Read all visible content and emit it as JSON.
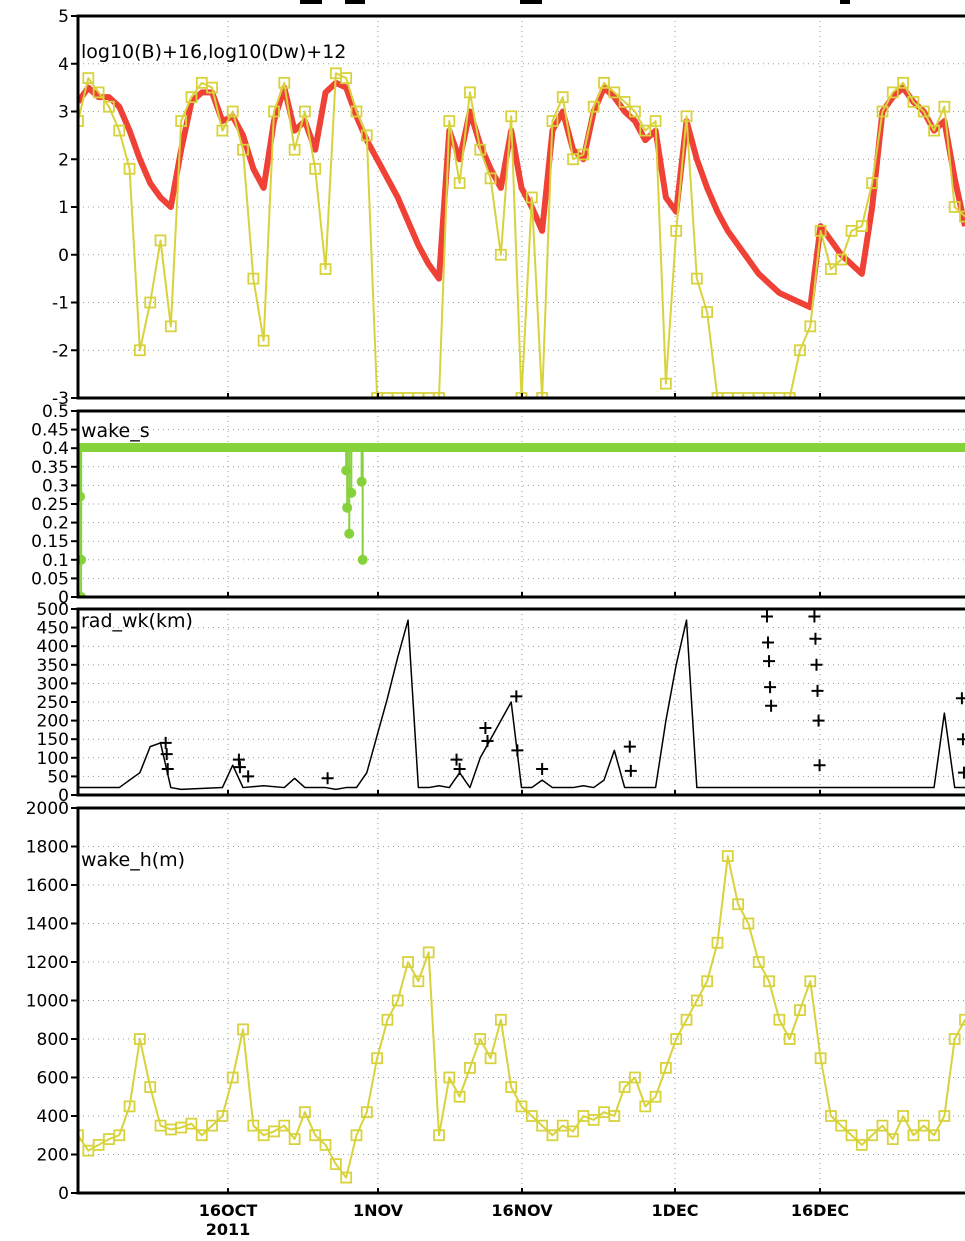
{
  "figure": {
    "panels_text": [
      "log10(B)+16,log10(Dw)+12",
      "wake_s",
      "rad_wk(km)",
      "wake_h(m)"
    ],
    "xticks": [
      "16OCT",
      "1NOV",
      "16NOV",
      "1DEC",
      "16DEC"
    ],
    "year_label": "2011",
    "colors": {
      "yellow": "#d8d33c",
      "red": "#ef4136",
      "green": "#86d23a",
      "black": "#000000"
    }
  },
  "chart_data": [
    {
      "type": "line",
      "label": "log10(B)+16,log10(Dw)+12",
      "x_range": [
        0,
        86
      ],
      "ylim": [
        -3,
        5
      ],
      "yticks": [
        -3,
        -2,
        -1,
        0,
        1,
        2,
        3,
        4,
        5
      ],
      "grid": true,
      "series": [
        {
          "color": "red",
          "x": [
            0,
            1,
            2,
            3,
            4,
            5,
            6,
            7,
            8,
            9,
            10,
            11,
            12,
            13,
            14,
            15,
            16,
            17,
            18,
            19,
            20,
            21,
            22,
            23,
            24,
            25,
            26,
            27,
            28,
            29,
            30,
            31,
            32,
            33,
            34,
            35,
            36,
            37,
            38,
            39,
            40,
            41,
            42,
            43,
            44,
            45,
            46,
            47,
            48,
            49,
            50,
            51,
            52,
            53,
            54,
            55,
            56,
            57,
            58,
            59,
            60,
            61,
            62,
            63,
            64,
            65,
            66,
            67,
            68,
            69,
            70,
            71,
            72,
            73,
            74,
            75,
            76,
            77,
            78,
            79,
            80,
            81,
            82,
            83,
            84,
            85,
            86
          ],
          "values": [
            3.2,
            3.5,
            3.3,
            3.3,
            3.1,
            2.6,
            2.0,
            1.5,
            1.2,
            1.0,
            2.2,
            3.2,
            3.4,
            3.4,
            2.8,
            2.9,
            2.5,
            1.8,
            1.4,
            2.8,
            3.5,
            2.6,
            2.8,
            2.2,
            3.4,
            3.6,
            3.5,
            2.9,
            2.4,
            2.0,
            1.6,
            1.2,
            0.7,
            0.2,
            -0.2,
            -0.5,
            2.6,
            2.0,
            3.0,
            2.3,
            1.8,
            1.4,
            2.6,
            1.4,
            1.0,
            0.5,
            2.6,
            3.0,
            2.2,
            2.0,
            3.0,
            3.5,
            3.3,
            3.0,
            2.8,
            2.4,
            2.6,
            1.2,
            0.9,
            2.8,
            2.0,
            1.4,
            0.9,
            0.5,
            0.2,
            -0.1,
            -0.4,
            -0.6,
            -0.8,
            -0.9,
            -1.0,
            -1.1,
            0.6,
            0.3,
            0.0,
            -0.2,
            -0.4,
            1.0,
            3.0,
            3.3,
            3.5,
            3.2,
            3.0,
            2.6,
            2.8,
            1.6,
            0.6
          ]
        },
        {
          "color": "yellow",
          "marker": "square",
          "note": "log10(B)+16 samples",
          "x": [
            0,
            1,
            2,
            3,
            4,
            5,
            6,
            7,
            8,
            9,
            10,
            11,
            12,
            13,
            14,
            15,
            16,
            17,
            18,
            19,
            20,
            21,
            22,
            23,
            24,
            25,
            26,
            27,
            28,
            29,
            30,
            31,
            32,
            33,
            34,
            35,
            36,
            37,
            38,
            39,
            40,
            41,
            42,
            43,
            44,
            45,
            46,
            47,
            48,
            49,
            50,
            51,
            52,
            53,
            54,
            55,
            56,
            57,
            58,
            59,
            60,
            61,
            62,
            63,
            64,
            65,
            66,
            67,
            68,
            69,
            70,
            71,
            72,
            73,
            74,
            75,
            76,
            77,
            78,
            79,
            80,
            81,
            82,
            83,
            84,
            85,
            86
          ],
          "values": [
            2.8,
            3.7,
            3.4,
            3.1,
            2.6,
            1.8,
            -2.0,
            -1.0,
            0.3,
            -1.5,
            2.8,
            3.3,
            3.6,
            3.5,
            2.6,
            3.0,
            2.2,
            -0.5,
            -1.8,
            3.0,
            3.6,
            2.2,
            3.0,
            1.8,
            -0.3,
            3.8,
            3.7,
            3.0,
            2.5,
            -3.0,
            -3.0,
            -3.0,
            -3.0,
            -3.0,
            -3.0,
            -3.0,
            2.8,
            1.5,
            3.4,
            2.2,
            1.6,
            0.0,
            2.9,
            -3.0,
            1.2,
            -3.0,
            2.8,
            3.3,
            2.0,
            2.1,
            3.1,
            3.6,
            3.4,
            3.2,
            3.0,
            2.6,
            2.8,
            -2.7,
            0.5,
            2.9,
            -0.5,
            -1.2,
            -3.0,
            -3.0,
            -3.0,
            -3.0,
            -3.0,
            -3.0,
            -3.0,
            -3.0,
            -2.0,
            -1.5,
            0.5,
            -0.3,
            -0.1,
            0.5,
            0.6,
            1.5,
            3.0,
            3.4,
            3.6,
            3.2,
            3.0,
            2.6,
            3.1,
            1.0,
            0.8
          ]
        }
      ]
    },
    {
      "type": "scatter",
      "label": "wake_s",
      "x_range": [
        0,
        86
      ],
      "ylim": [
        0,
        0.5
      ],
      "yticks": [
        0,
        0.05,
        0.1,
        0.15,
        0.2,
        0.25,
        0.3,
        0.35,
        0.4,
        0.45,
        0.5
      ],
      "grid": true,
      "series": [
        {
          "color": "green",
          "baseline": 0.402,
          "x": [
            0.2,
            0.3,
            0.3,
            26.0,
            26.1,
            26.3,
            26.5,
            27.5,
            27.6
          ],
          "values": [
            0.27,
            0.1,
            0.0,
            0.34,
            0.24,
            0.17,
            0.28,
            0.31,
            0.1
          ]
        }
      ]
    },
    {
      "type": "line",
      "label": "rad_wk(km)",
      "x_range": [
        0,
        86
      ],
      "ylim": [
        0,
        500
      ],
      "yticks": [
        0,
        50,
        100,
        150,
        200,
        250,
        300,
        350,
        400,
        450,
        500
      ],
      "grid": true,
      "series": [
        {
          "color": "black",
          "style": "thin",
          "x": [
            0,
            4,
            6,
            7,
            8,
            9,
            10,
            14,
            15,
            16,
            18,
            20,
            21,
            22,
            24,
            25,
            26,
            27,
            28,
            29,
            30,
            31,
            32,
            33,
            34,
            35,
            36,
            37,
            38,
            39,
            40,
            41,
            42,
            43,
            44,
            45,
            46,
            47,
            48,
            49,
            50,
            51,
            52,
            53,
            54,
            55,
            56,
            57,
            58,
            59,
            60,
            61,
            62,
            63,
            64,
            65,
            66,
            67,
            68,
            69,
            70,
            71,
            72,
            73,
            74,
            75,
            76,
            77,
            78,
            79,
            80,
            81,
            82,
            83,
            84,
            85,
            86
          ],
          "values": [
            20,
            20,
            60,
            130,
            140,
            20,
            15,
            20,
            80,
            20,
            25,
            20,
            45,
            20,
            20,
            15,
            20,
            20,
            60,
            160,
            260,
            370,
            470,
            20,
            20,
            25,
            20,
            60,
            20,
            100,
            150,
            200,
            250,
            20,
            20,
            40,
            20,
            20,
            20,
            25,
            20,
            40,
            120,
            20,
            20,
            20,
            20,
            200,
            350,
            470,
            20,
            20,
            20,
            20,
            20,
            20,
            20,
            20,
            20,
            20,
            20,
            20,
            20,
            20,
            20,
            20,
            20,
            20,
            20,
            20,
            20,
            20,
            20,
            20,
            220,
            20,
            20
          ]
        },
        {
          "color": "black",
          "marker": "plus",
          "x": [
            8.5,
            8.6,
            8.7,
            15.6,
            15.7,
            16.5,
            24.2,
            36.7,
            37.0,
            39.5,
            39.7,
            42.5,
            42.6,
            45.0,
            53.5,
            53.6,
            66.8,
            66.9,
            67.0,
            67.1,
            67.2,
            71.4,
            71.5,
            71.6,
            71.7,
            71.8,
            71.9,
            85.7,
            85.8,
            85.9
          ],
          "values": [
            140,
            110,
            70,
            95,
            75,
            50,
            45,
            95,
            70,
            180,
            145,
            265,
            120,
            70,
            130,
            65,
            480,
            410,
            360,
            290,
            240,
            480,
            420,
            350,
            280,
            200,
            80,
            260,
            150,
            60
          ]
        }
      ]
    },
    {
      "type": "line",
      "label": "wake_h(m)",
      "x_range": [
        0,
        86
      ],
      "ylim": [
        0,
        2000
      ],
      "yticks": [
        0,
        200,
        400,
        600,
        800,
        1000,
        1200,
        1400,
        1600,
        1800,
        2000
      ],
      "grid": true,
      "series": [
        {
          "color": "yellow",
          "marker": "square",
          "x": [
            0,
            1,
            2,
            3,
            4,
            5,
            6,
            7,
            8,
            9,
            10,
            11,
            12,
            13,
            14,
            15,
            16,
            17,
            18,
            19,
            20,
            21,
            22,
            23,
            24,
            25,
            26,
            27,
            28,
            29,
            30,
            31,
            32,
            33,
            34,
            35,
            36,
            37,
            38,
            39,
            40,
            41,
            42,
            43,
            44,
            45,
            46,
            47,
            48,
            49,
            50,
            51,
            52,
            53,
            54,
            55,
            56,
            57,
            58,
            59,
            60,
            61,
            62,
            63,
            64,
            65,
            66,
            67,
            68,
            69,
            70,
            71,
            72,
            73,
            74,
            75,
            76,
            77,
            78,
            79,
            80,
            81,
            82,
            83,
            84,
            85,
            86
          ],
          "values": [
            300,
            220,
            250,
            280,
            300,
            450,
            800,
            550,
            350,
            330,
            340,
            360,
            300,
            350,
            400,
            600,
            850,
            350,
            300,
            320,
            350,
            280,
            420,
            300,
            250,
            150,
            80,
            300,
            420,
            700,
            900,
            1000,
            1200,
            1100,
            1250,
            300,
            600,
            500,
            650,
            800,
            700,
            900,
            550,
            450,
            400,
            350,
            300,
            350,
            320,
            400,
            380,
            420,
            400,
            550,
            600,
            450,
            500,
            650,
            800,
            900,
            1000,
            1100,
            1300,
            1750,
            1500,
            1400,
            1200,
            1100,
            900,
            800,
            950,
            1100,
            700,
            400,
            350,
            300,
            250,
            300,
            350,
            280,
            400,
            300,
            350,
            300,
            400,
            800,
            900
          ]
        }
      ]
    }
  ]
}
